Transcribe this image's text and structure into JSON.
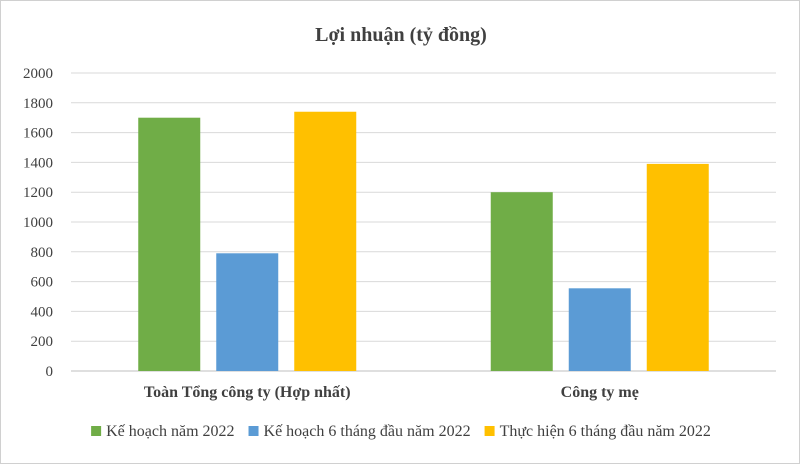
{
  "chart_data": {
    "type": "bar",
    "title": "Lợi nhuận (tỷ đồng)",
    "xlabel": "",
    "ylabel": "",
    "categories": [
      "Toàn Tổng công ty (Hợp nhất)",
      "Công ty mẹ"
    ],
    "series": [
      {
        "name": "Kế hoạch năm 2022",
        "values": [
          1700,
          1200
        ],
        "color": "#70ad47"
      },
      {
        "name": "Kế hoạch 6 tháng đầu năm 2022",
        "values": [
          790,
          555
        ],
        "color": "#5b9bd5"
      },
      {
        "name": "Thực hiện 6 tháng đầu năm 2022",
        "values": [
          1740,
          1390
        ],
        "color": "#ffc000"
      }
    ],
    "ylim": [
      0,
      2000
    ],
    "yticks": [
      0,
      200,
      400,
      600,
      800,
      1000,
      1200,
      1400,
      1600,
      1800,
      2000
    ],
    "grid": true,
    "legend_position": "bottom"
  }
}
